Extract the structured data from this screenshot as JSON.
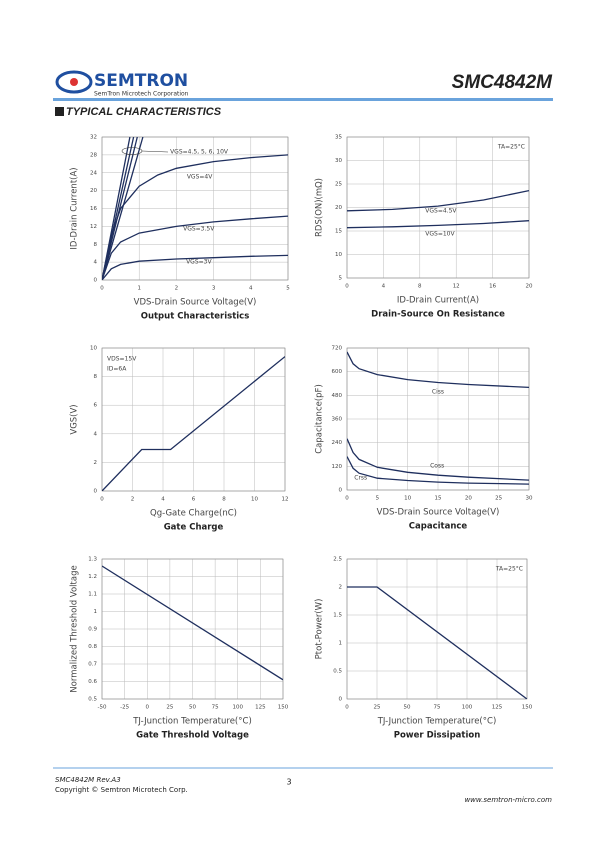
{
  "header": {
    "logo": "SEMTRON",
    "company": "SemTron Microtech Corporation",
    "part": "SMC4842M",
    "section": "TYPICAL CHARACTERISTICS"
  },
  "chart_data": [
    {
      "type": "line",
      "caption": "Output Characteristics",
      "xlabel": "VDS-Drain Source Voltage(V)",
      "ylabel": "ID-Drain Current(A)",
      "xlim": [
        0,
        5
      ],
      "xticks": [
        0,
        1,
        2,
        3,
        4,
        5
      ],
      "ylim": [
        0,
        32
      ],
      "yticks": [
        0,
        4,
        8,
        12,
        16,
        20,
        24,
        28,
        32
      ],
      "grid": true,
      "series": [
        {
          "name": "VGS=4.5, 5, 6, 10V",
          "color": "#1f2f5e",
          "x": [
            0,
            0.95
          ],
          "values": [
            0,
            32
          ]
        },
        {
          "color": "#1f2f5e",
          "x": [
            0,
            0.85
          ],
          "values": [
            0,
            32
          ]
        },
        {
          "color": "#1f2f5e",
          "x": [
            0,
            0.75
          ],
          "values": [
            0,
            32
          ]
        },
        {
          "color": "#1f2f5e",
          "x": [
            0,
            1.1
          ],
          "values": [
            0,
            32
          ]
        },
        {
          "name": "VGS=4V",
          "color": "#1f2f5e",
          "x": [
            0,
            0.25,
            0.5,
            1,
            1.5,
            2,
            3,
            4,
            5
          ],
          "values": [
            0,
            10,
            16,
            21,
            23.5,
            25,
            26.5,
            27.4,
            28
          ]
        },
        {
          "name": "VGS=3.5V",
          "color": "#1f2f5e",
          "x": [
            0,
            0.25,
            0.5,
            1,
            2,
            3,
            4,
            5
          ],
          "values": [
            0,
            6,
            8.5,
            10.5,
            12,
            13,
            13.7,
            14.3
          ]
        },
        {
          "name": "VGS=3V",
          "color": "#1f2f5e",
          "x": [
            0,
            0.25,
            0.5,
            1,
            2,
            3,
            4,
            5
          ],
          "values": [
            0,
            2.5,
            3.5,
            4.2,
            4.7,
            5,
            5.3,
            5.5
          ]
        }
      ]
    },
    {
      "type": "line",
      "caption": "Drain-Source On Resistance",
      "xlabel": "ID-Drain Current(A)",
      "ylabel": "RDS(ON)(mΩ)",
      "xlim": [
        0,
        20
      ],
      "xticks": [
        0,
        4,
        8,
        12,
        16,
        20
      ],
      "ylim": [
        5,
        35
      ],
      "yticks": [
        5,
        10,
        15,
        20,
        25,
        30,
        35
      ],
      "grid": true,
      "annotations": [
        "TA=25°C"
      ],
      "series": [
        {
          "name": "VGS=4.5V",
          "color": "#1f2f5e",
          "x": [
            0,
            5,
            10,
            15,
            20
          ],
          "values": [
            19.3,
            19.6,
            20.3,
            21.6,
            23.6
          ]
        },
        {
          "name": "VGS=10V",
          "color": "#1f2f5e",
          "x": [
            0,
            5,
            10,
            15,
            20
          ],
          "values": [
            15.7,
            15.9,
            16.2,
            16.6,
            17.2
          ]
        }
      ]
    },
    {
      "type": "line",
      "caption": "Gate Charge",
      "xlabel": "Qg-Gate Charge(nC)",
      "ylabel": "VGS(V)",
      "xlim": [
        0,
        12
      ],
      "xticks": [
        0,
        2,
        4,
        6,
        8,
        10,
        12
      ],
      "ylim": [
        0,
        10
      ],
      "yticks": [
        0,
        2,
        4,
        6,
        8,
        10
      ],
      "grid": true,
      "annotations": [
        "VDS=15V",
        "ID=6A"
      ],
      "series": [
        {
          "color": "#1f2f5e",
          "x": [
            0,
            2.6,
            4.5,
            12
          ],
          "values": [
            0,
            2.9,
            2.9,
            9.4
          ]
        }
      ]
    },
    {
      "type": "line",
      "caption": "Capacitance",
      "xlabel": "VDS-Drain Source Voltage(V)",
      "ylabel": "Capacitance(pF)",
      "xlim": [
        0,
        30
      ],
      "xticks": [
        0,
        5,
        10,
        15,
        20,
        25,
        30
      ],
      "ylim": [
        0,
        720
      ],
      "yticks": [
        0,
        120,
        240,
        360,
        480,
        600,
        720
      ],
      "grid": true,
      "series": [
        {
          "name": "Ciss",
          "color": "#1f2f5e",
          "x": [
            0,
            1,
            2,
            5,
            10,
            15,
            20,
            30
          ],
          "values": [
            700,
            640,
            615,
            585,
            560,
            545,
            535,
            520
          ]
        },
        {
          "name": "Coss",
          "color": "#1f2f5e",
          "x": [
            0,
            1,
            2,
            5,
            10,
            15,
            20,
            30
          ],
          "values": [
            260,
            190,
            155,
            115,
            90,
            75,
            65,
            50
          ]
        },
        {
          "name": "Crss",
          "color": "#1f2f5e",
          "x": [
            0,
            1,
            2,
            5,
            10,
            15,
            20,
            30
          ],
          "values": [
            170,
            110,
            85,
            60,
            48,
            40,
            35,
            30
          ]
        }
      ]
    },
    {
      "type": "line",
      "caption": "Gate Threshold Voltage",
      "xlabel": "TJ-Junction Temperature(°C)",
      "ylabel": "Normalized Threshold Voltage",
      "xlim": [
        -50,
        150
      ],
      "xticks": [
        -50,
        -25,
        0,
        25,
        50,
        75,
        100,
        125,
        150
      ],
      "ylim": [
        0.5,
        1.3
      ],
      "yticks": [
        0.5,
        0.6,
        0.7,
        0.8,
        0.9,
        1,
        1.1,
        1.2,
        1.3
      ],
      "grid": true,
      "series": [
        {
          "color": "#1f2f5e",
          "x": [
            -50,
            150
          ],
          "values": [
            1.26,
            0.61
          ]
        }
      ]
    },
    {
      "type": "line",
      "caption": "Power Dissipation",
      "xlabel": "TJ-Junction Temperature(°C)",
      "ylabel": "Ptot-Power(W)",
      "xlim": [
        0,
        150
      ],
      "xticks": [
        0,
        25,
        50,
        75,
        100,
        125,
        150
      ],
      "ylim": [
        0,
        2.5
      ],
      "yticks": [
        0,
        0.5,
        1,
        1.5,
        2,
        2.5
      ],
      "grid": true,
      "annotations": [
        "TA=25°C"
      ],
      "series": [
        {
          "color": "#1f2f5e",
          "x": [
            0,
            25,
            150
          ],
          "values": [
            2,
            2,
            0
          ]
        }
      ]
    }
  ],
  "footer": {
    "revision": "SMC4842M Rev.A3",
    "copyright": "Copyright © Semtron Microtech Corp.",
    "page": "3",
    "website": "www.semtron-micro.com"
  }
}
